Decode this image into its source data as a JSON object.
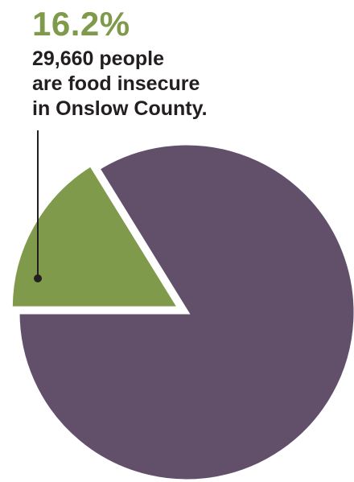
{
  "chart_data": {
    "type": "pie",
    "title": "",
    "slices": [
      {
        "label": "",
        "value": 16.2,
        "color": "#7f9a4a",
        "exploded": true
      },
      {
        "label": "",
        "value": 83.8,
        "color": "#62506b",
        "exploded": false
      }
    ],
    "annotation": {
      "value_label": "16.2%",
      "lines": [
        "29,660 people",
        "are food insecure",
        "in Onslow County."
      ]
    },
    "legend": "none",
    "grid": false
  }
}
